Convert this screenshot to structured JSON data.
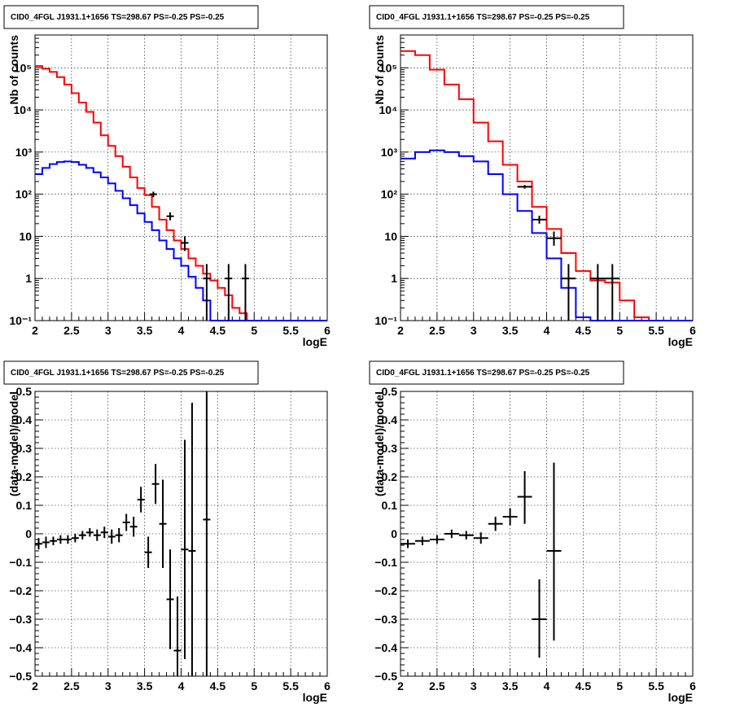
{
  "chart_data": [
    {
      "type": "line",
      "title": "CID0_4FGL J1931.1+1656 TS=298.67 PS=-0.25 PS=-0.25",
      "xlabel": "logE",
      "ylabel": "Nb of counts",
      "xlim": [
        2,
        6
      ],
      "ylim": [
        0.1,
        600000
      ],
      "yscale": "log",
      "grid": true,
      "x_ticks": [
        "2",
        "2.5",
        "3",
        "3.5",
        "4",
        "4.5",
        "5",
        "5.5",
        "6"
      ],
      "y_ticks": [
        {
          "value": 0.1,
          "label": "10⁻¹"
        },
        {
          "value": 1,
          "label": "1"
        },
        {
          "value": 10,
          "label": "10"
        },
        {
          "value": 100,
          "label": "10²"
        },
        {
          "value": 1000,
          "label": "10³"
        },
        {
          "value": 10000,
          "label": "10⁴"
        },
        {
          "value": 100000,
          "label": "10⁵"
        }
      ],
      "series": [
        {
          "kind": "step",
          "color": "#ff0000",
          "edges": [
            2.0,
            2.1,
            2.2,
            2.3,
            2.4,
            2.5,
            2.6,
            2.7,
            2.8,
            2.9,
            3.0,
            3.1,
            3.2,
            3.3,
            3.4,
            3.5,
            3.6,
            3.7,
            3.8,
            3.9,
            4.0,
            4.1,
            4.2,
            4.3,
            4.4,
            4.5,
            4.6,
            4.7,
            4.8,
            4.9,
            5.0,
            5.1,
            5.2,
            5.3,
            5.4,
            5.5,
            5.6,
            5.7,
            5.8,
            5.9,
            6.0
          ],
          "values": [
            110000,
            95000,
            80000,
            60000,
            40000,
            25000,
            15000,
            9000,
            5000,
            2500,
            1400,
            800,
            450,
            250,
            140,
            95,
            50,
            25,
            14,
            8,
            5,
            3,
            2,
            1.3,
            0.9,
            0.6,
            0.4,
            0.2,
            0.15,
            0.1,
            0.1,
            0.1,
            0.1,
            0.1,
            0.1,
            0.1,
            0.1,
            0.1,
            0.1,
            0.1
          ]
        },
        {
          "kind": "step",
          "color": "#0000ff",
          "edges": [
            2.0,
            2.1,
            2.2,
            2.3,
            2.4,
            2.5,
            2.6,
            2.7,
            2.8,
            2.9,
            3.0,
            3.1,
            3.2,
            3.3,
            3.4,
            3.5,
            3.6,
            3.7,
            3.8,
            3.9,
            4.0,
            4.1,
            4.2,
            4.3,
            4.4,
            4.5,
            4.6,
            4.7,
            4.8,
            4.9,
            5.0,
            5.1,
            5.2,
            5.3,
            5.4,
            5.5,
            5.6,
            5.7,
            5.8,
            5.9,
            6.0
          ],
          "values": [
            300,
            420,
            520,
            580,
            600,
            580,
            500,
            420,
            330,
            250,
            180,
            120,
            80,
            55,
            35,
            22,
            14,
            8,
            5,
            3,
            2,
            1.1,
            0.6,
            0.3,
            0.1,
            0.1,
            0.1,
            0.1,
            0.1,
            0.1,
            0.1,
            0.1,
            0.1,
            0.1,
            0.1,
            0.1,
            0.1,
            0.1,
            0.1,
            0.1
          ]
        },
        {
          "kind": "errorbar",
          "color": "#000000",
          "points": [
            {
              "x": 3.62,
              "xerr": 0.05,
              "y": 100,
              "ylo": 85,
              "yhi": 115
            },
            {
              "x": 3.85,
              "xerr": 0.05,
              "y": 30,
              "ylo": 24,
              "yhi": 37
            },
            {
              "x": 4.05,
              "xerr": 0.05,
              "y": 7,
              "ylo": 4.5,
              "yhi": 10
            },
            {
              "x": 4.35,
              "xerr": 0.05,
              "y": 1,
              "ylo": 0.1,
              "yhi": 2.2
            },
            {
              "x": 4.65,
              "xerr": 0.05,
              "y": 1,
              "ylo": 0.1,
              "yhi": 2.2
            },
            {
              "x": 4.88,
              "xerr": 0.05,
              "y": 1,
              "ylo": 0.1,
              "yhi": 2.2
            }
          ]
        }
      ]
    },
    {
      "type": "line",
      "title": "CID0_4FGL J1931.1+1656 TS=298.67 PS=-0.25 PS=-0.25",
      "xlabel": "logE",
      "ylabel": "Nb of counts",
      "xlim": [
        2,
        6
      ],
      "ylim": [
        0.1,
        600000
      ],
      "yscale": "log",
      "grid": true,
      "x_ticks": [
        "2",
        "2.5",
        "3",
        "3.5",
        "4",
        "4.5",
        "5",
        "5.5",
        "6"
      ],
      "y_ticks": [
        {
          "value": 0.1,
          "label": "10⁻¹"
        },
        {
          "value": 1,
          "label": "1"
        },
        {
          "value": 10,
          "label": "10"
        },
        {
          "value": 100,
          "label": "10²"
        },
        {
          "value": 1000,
          "label": "10³"
        },
        {
          "value": 10000,
          "label": "10⁴"
        },
        {
          "value": 100000,
          "label": "10⁵"
        }
      ],
      "series": [
        {
          "kind": "step",
          "color": "#ff0000",
          "edges": [
            2.0,
            2.2,
            2.4,
            2.6,
            2.8,
            3.0,
            3.2,
            3.4,
            3.6,
            3.8,
            4.0,
            4.2,
            4.4,
            4.6,
            4.8,
            5.0,
            5.2,
            5.4,
            5.6,
            5.8,
            6.0
          ],
          "values": [
            250000,
            200000,
            90000,
            40000,
            18000,
            5000,
            1800,
            500,
            200,
            50,
            15,
            4,
            1.5,
            0.9,
            0.8,
            0.3,
            0.12,
            0.1,
            0.1,
            0.1
          ]
        },
        {
          "kind": "step",
          "color": "#0000ff",
          "edges": [
            2.0,
            2.2,
            2.4,
            2.6,
            2.8,
            3.0,
            3.2,
            3.4,
            3.6,
            3.8,
            4.0,
            4.2,
            4.4,
            4.6,
            4.8,
            5.0,
            5.2,
            5.4,
            5.6,
            5.8,
            6.0
          ],
          "values": [
            700,
            1000,
            1100,
            1000,
            800,
            600,
            300,
            100,
            40,
            12,
            3,
            0.6,
            0.12,
            0.1,
            0.1,
            0.1,
            0.1,
            0.1,
            0.1,
            0.1
          ]
        },
        {
          "kind": "errorbar",
          "color": "#000000",
          "points": [
            {
              "x": 3.7,
              "xerr": 0.1,
              "y": 150,
              "ylo": 135,
              "yhi": 165
            },
            {
              "x": 3.9,
              "xerr": 0.1,
              "y": 25,
              "ylo": 20,
              "yhi": 31
            },
            {
              "x": 4.1,
              "xerr": 0.1,
              "y": 9,
              "ylo": 6,
              "yhi": 13
            },
            {
              "x": 4.3,
              "xerr": 0.1,
              "y": 1,
              "ylo": 0.1,
              "yhi": 2.2
            },
            {
              "x": 4.7,
              "xerr": 0.1,
              "y": 1,
              "ylo": 0.1,
              "yhi": 2.2
            },
            {
              "x": 4.9,
              "xerr": 0.1,
              "y": 1,
              "ylo": 0.1,
              "yhi": 2.2
            }
          ]
        }
      ]
    },
    {
      "type": "scatter",
      "title": "CID0_4FGL J1931.1+1656 TS=298.67 PS=-0.25 PS=-0.25",
      "xlabel": "logE",
      "ylabel": "(data-model)/model",
      "xlim": [
        2,
        6
      ],
      "ylim": [
        -0.5,
        0.5
      ],
      "yscale": "linear",
      "grid": true,
      "x_ticks": [
        "2",
        "2.5",
        "3",
        "3.5",
        "4",
        "4.5",
        "5",
        "5.5",
        "6"
      ],
      "y_ticks": [
        {
          "value": -0.5,
          "label": "−0.5"
        },
        {
          "value": -0.4,
          "label": "−0.4"
        },
        {
          "value": -0.3,
          "label": "−0.3"
        },
        {
          "value": -0.2,
          "label": "−0.2"
        },
        {
          "value": -0.1,
          "label": "−0.1"
        },
        {
          "value": 0,
          "label": "0"
        },
        {
          "value": 0.1,
          "label": "0.1"
        },
        {
          "value": 0.2,
          "label": "0.2"
        },
        {
          "value": 0.3,
          "label": "0.3"
        },
        {
          "value": 0.4,
          "label": "0.4"
        },
        {
          "value": 0.5,
          "label": "0.5"
        }
      ],
      "series": [
        {
          "kind": "errorbar",
          "color": "#000000",
          "points": [
            {
              "x": 2.05,
              "xerr": 0.05,
              "y": -0.035,
              "ylo": -0.055,
              "yhi": -0.015
            },
            {
              "x": 2.15,
              "xerr": 0.05,
              "y": -0.03,
              "ylo": -0.05,
              "yhi": -0.01
            },
            {
              "x": 2.25,
              "xerr": 0.05,
              "y": -0.025,
              "ylo": -0.04,
              "yhi": -0.01
            },
            {
              "x": 2.35,
              "xerr": 0.05,
              "y": -0.02,
              "ylo": -0.035,
              "yhi": -0.005
            },
            {
              "x": 2.45,
              "xerr": 0.05,
              "y": -0.02,
              "ylo": -0.035,
              "yhi": -0.005
            },
            {
              "x": 2.55,
              "xerr": 0.05,
              "y": -0.015,
              "ylo": -0.03,
              "yhi": 0.0
            },
            {
              "x": 2.65,
              "xerr": 0.05,
              "y": -0.005,
              "ylo": -0.02,
              "yhi": 0.01
            },
            {
              "x": 2.75,
              "xerr": 0.05,
              "y": 0.005,
              "ylo": -0.01,
              "yhi": 0.02
            },
            {
              "x": 2.85,
              "xerr": 0.05,
              "y": -0.005,
              "ylo": -0.025,
              "yhi": 0.015
            },
            {
              "x": 2.95,
              "xerr": 0.05,
              "y": 0.005,
              "ylo": -0.015,
              "yhi": 0.025
            },
            {
              "x": 3.05,
              "xerr": 0.05,
              "y": -0.01,
              "ylo": -0.035,
              "yhi": 0.015
            },
            {
              "x": 3.15,
              "xerr": 0.05,
              "y": -0.005,
              "ylo": -0.03,
              "yhi": 0.02
            },
            {
              "x": 3.25,
              "xerr": 0.05,
              "y": 0.04,
              "ylo": 0.01,
              "yhi": 0.07
            },
            {
              "x": 3.35,
              "xerr": 0.05,
              "y": 0.025,
              "ylo": -0.01,
              "yhi": 0.06
            },
            {
              "x": 3.45,
              "xerr": 0.05,
              "y": 0.12,
              "ylo": 0.075,
              "yhi": 0.165
            },
            {
              "x": 3.55,
              "xerr": 0.05,
              "y": -0.065,
              "ylo": -0.12,
              "yhi": -0.01
            },
            {
              "x": 3.65,
              "xerr": 0.05,
              "y": 0.175,
              "ylo": 0.105,
              "yhi": 0.245
            },
            {
              "x": 3.75,
              "xerr": 0.05,
              "y": 0.035,
              "ylo": -0.12,
              "yhi": 0.19
            },
            {
              "x": 3.85,
              "xerr": 0.05,
              "y": -0.23,
              "ylo": -0.405,
              "yhi": -0.055
            },
            {
              "x": 3.95,
              "xerr": 0.05,
              "y": -0.41,
              "ylo": -0.5,
              "yhi": -0.22
            },
            {
              "x": 4.05,
              "xerr": 0.05,
              "y": -0.055,
              "ylo": -0.44,
              "yhi": 0.33
            },
            {
              "x": 4.15,
              "xerr": 0.05,
              "y": -0.06,
              "ylo": -0.5,
              "yhi": 0.46
            },
            {
              "x": 4.35,
              "xerr": 0.05,
              "y": 0.05,
              "ylo": -0.5,
              "yhi": 0.5
            }
          ]
        }
      ]
    },
    {
      "type": "scatter",
      "title": "CID0_4FGL J1931.1+1656 TS=298.67 PS=-0.25 PS=-0.25",
      "xlabel": "logE",
      "ylabel": "(data-model)/model",
      "xlim": [
        2,
        6
      ],
      "ylim": [
        -0.5,
        0.5
      ],
      "yscale": "linear",
      "grid": true,
      "x_ticks": [
        "2",
        "2.5",
        "3",
        "3.5",
        "4",
        "4.5",
        "5",
        "5.5",
        "6"
      ],
      "y_ticks": [
        {
          "value": -0.5,
          "label": "−0.5"
        },
        {
          "value": -0.4,
          "label": "−0.4"
        },
        {
          "value": -0.3,
          "label": "−0.3"
        },
        {
          "value": -0.2,
          "label": "−0.2"
        },
        {
          "value": -0.1,
          "label": "−0.1"
        },
        {
          "value": 0,
          "label": "0"
        },
        {
          "value": 0.1,
          "label": "0.1"
        },
        {
          "value": 0.2,
          "label": "0.2"
        },
        {
          "value": 0.3,
          "label": "0.3"
        },
        {
          "value": 0.4,
          "label": "0.4"
        },
        {
          "value": 0.5,
          "label": "0.5"
        }
      ],
      "series": [
        {
          "kind": "errorbar",
          "color": "#000000",
          "points": [
            {
              "x": 2.1,
              "xerr": 0.1,
              "y": -0.035,
              "ylo": -0.05,
              "yhi": -0.02
            },
            {
              "x": 2.3,
              "xerr": 0.1,
              "y": -0.025,
              "ylo": -0.04,
              "yhi": -0.01
            },
            {
              "x": 2.5,
              "xerr": 0.1,
              "y": -0.02,
              "ylo": -0.035,
              "yhi": -0.005
            },
            {
              "x": 2.7,
              "xerr": 0.1,
              "y": 0.0,
              "ylo": -0.015,
              "yhi": 0.015
            },
            {
              "x": 2.9,
              "xerr": 0.1,
              "y": -0.005,
              "ylo": -0.02,
              "yhi": 0.01
            },
            {
              "x": 3.1,
              "xerr": 0.1,
              "y": -0.015,
              "ylo": -0.035,
              "yhi": 0.005
            },
            {
              "x": 3.3,
              "xerr": 0.1,
              "y": 0.035,
              "ylo": 0.01,
              "yhi": 0.06
            },
            {
              "x": 3.5,
              "xerr": 0.1,
              "y": 0.06,
              "ylo": 0.03,
              "yhi": 0.09
            },
            {
              "x": 3.7,
              "xerr": 0.1,
              "y": 0.13,
              "ylo": 0.035,
              "yhi": 0.22
            },
            {
              "x": 3.9,
              "xerr": 0.1,
              "y": -0.3,
              "ylo": -0.435,
              "yhi": -0.16
            },
            {
              "x": 4.1,
              "xerr": 0.1,
              "y": -0.06,
              "ylo": -0.375,
              "yhi": 0.25
            }
          ]
        }
      ]
    }
  ]
}
